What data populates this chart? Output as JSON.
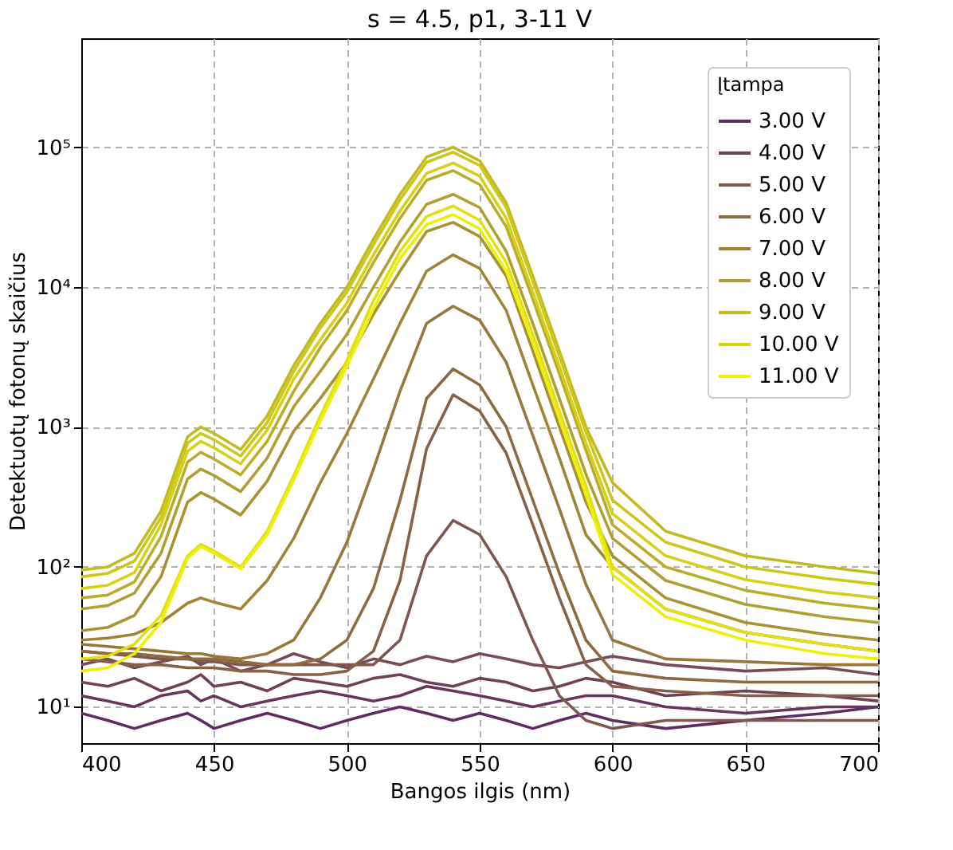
{
  "chart_data": {
    "type": "line",
    "title": "s = 4.5, p1, 3-11 V",
    "xlabel": "Bangos ilgis (nm)",
    "ylabel": "Detektuotų fotonų skaičius",
    "legend_title": "Įtampa",
    "x": [
      400,
      410,
      420,
      430,
      440,
      445,
      450,
      460,
      470,
      480,
      490,
      500,
      510,
      520,
      530,
      540,
      550,
      560,
      570,
      580,
      590,
      600,
      620,
      650,
      680,
      700
    ],
    "xlim": [
      400,
      700
    ],
    "xticks": [
      400,
      450,
      500,
      550,
      600,
      650,
      700
    ],
    "ylim": [
      5.5,
      600000
    ],
    "yticks": [
      {
        "value": 10,
        "label": "10¹"
      },
      {
        "value": 100,
        "label": "10²"
      },
      {
        "value": 1000,
        "label": "10³"
      },
      {
        "value": 10000,
        "label": "10⁴"
      },
      {
        "value": 100000,
        "label": "10⁵"
      }
    ],
    "log": "y",
    "grid": true,
    "legend": "top right",
    "marker": "none",
    "line_style": "solid",
    "series": [
      {
        "name": "3.00 V",
        "color": "#622a62",
        "values": [
          9,
          8,
          7,
          8,
          9,
          8,
          7,
          8,
          9,
          8,
          7,
          8,
          9,
          10,
          9,
          8,
          9,
          8,
          7,
          8,
          9,
          8,
          7,
          8,
          9,
          10
        ]
      },
      {
        "color": "#69355e",
        "values": [
          12,
          11,
          10,
          12,
          13,
          11,
          12,
          10,
          11,
          12,
          13,
          12,
          11,
          12,
          14,
          13,
          12,
          11,
          10,
          11,
          12,
          12,
          10,
          9,
          10,
          10
        ]
      },
      {
        "name": "4.00 V",
        "color": "#70405a",
        "values": [
          15,
          14,
          16,
          13,
          15,
          17,
          14,
          15,
          13,
          16,
          15,
          14,
          16,
          17,
          15,
          14,
          16,
          15,
          13,
          14,
          16,
          15,
          12,
          13,
          12,
          11
        ]
      },
      {
        "color": "#784b55",
        "values": [
          20,
          22,
          19,
          21,
          23,
          20,
          22,
          18,
          20,
          24,
          21,
          19,
          22,
          20,
          23,
          21,
          24,
          22,
          20,
          19,
          21,
          23,
          20,
          18,
          19,
          17
        ]
      },
      {
        "name": "5.00 V",
        "color": "#7f5650",
        "values": [
          25,
          24,
          23,
          22,
          22,
          21,
          21,
          20,
          20,
          20,
          20,
          20,
          20,
          30,
          120,
          215,
          170,
          85,
          30,
          12,
          8,
          7,
          8,
          8,
          8,
          8
        ]
      },
      {
        "color": "#876048",
        "values": [
          22,
          21,
          20,
          20,
          19,
          19,
          19,
          18,
          18,
          17,
          17,
          18,
          25,
          80,
          700,
          1700,
          1300,
          650,
          200,
          60,
          20,
          14,
          13,
          12,
          12,
          12
        ]
      },
      {
        "name": "6.00 V",
        "color": "#8e6a3f",
        "values": [
          25,
          24,
          24,
          23,
          22,
          22,
          22,
          21,
          20,
          20,
          22,
          30,
          70,
          300,
          1600,
          2600,
          2000,
          1000,
          300,
          90,
          30,
          18,
          16,
          15,
          15,
          15
        ]
      },
      {
        "color": "#97773a",
        "values": [
          28,
          27,
          26,
          25,
          24,
          24,
          23,
          22,
          24,
          30,
          60,
          150,
          500,
          1800,
          5500,
          7300,
          5800,
          2900,
          870,
          260,
          75,
          30,
          22,
          21,
          20,
          20
        ]
      },
      {
        "name": "7.00 V",
        "color": "#a08435",
        "values": [
          30,
          31,
          33,
          40,
          55,
          60,
          56,
          50,
          80,
          160,
          400,
          900,
          2200,
          5500,
          13000,
          17000,
          13600,
          6800,
          2000,
          600,
          170,
          100,
          50,
          34,
          28,
          25
        ]
      },
      {
        "color": "#a89234",
        "values": [
          35,
          37,
          45,
          85,
          290,
          340,
          305,
          235,
          410,
          935,
          1600,
          2900,
          6400,
          13000,
          25000,
          29000,
          23000,
          12000,
          3500,
          1000,
          290,
          120,
          60,
          40,
          33,
          30
        ]
      },
      {
        "name": "8.00 V",
        "color": "#b0a034",
        "values": [
          50,
          53,
          65,
          125,
          425,
          500,
          450,
          345,
          600,
          1400,
          2500,
          4600,
          10000,
          21000,
          39000,
          46000,
          37000,
          18000,
          5500,
          1600,
          460,
          160,
          80,
          54,
          44,
          40
        ]
      },
      {
        "color": "#baad2b",
        "values": [
          60,
          63,
          78,
          165,
          560,
          660,
          590,
          455,
          790,
          1800,
          3700,
          6800,
          15000,
          31000,
          58000,
          68000,
          54000,
          27000,
          8200,
          2400,
          680,
          200,
          100,
          68,
          55,
          50
        ]
      },
      {
        "name": "9.00 V",
        "color": "#c3ba22",
        "values": [
          95,
          100,
          125,
          250,
          850,
          1000,
          900,
          690,
          1200,
          2750,
          5500,
          10000,
          22000,
          46000,
          85000,
          100000,
          80000,
          40000,
          12000,
          3500,
          1000,
          400,
          180,
          120,
          100,
          90
        ]
      },
      {
        "color": "#ccc61d",
        "values": [
          85,
          90,
          110,
          225,
          765,
          900,
          810,
          620,
          1080,
          2500,
          5100,
          9200,
          20000,
          42000,
          78000,
          92000,
          74000,
          37000,
          11000,
          3200,
          920,
          300,
          150,
          100,
          83,
          75
        ]
      },
      {
        "name": "10.00 V",
        "color": "#d6d118",
        "values": [
          70,
          74,
          91,
          200,
          670,
          790,
          710,
          545,
          950,
          2200,
          4200,
          7700,
          17000,
          35000,
          65000,
          77000,
          62000,
          31000,
          9200,
          2700,
          770,
          240,
          120,
          81,
          66,
          60
        ]
      },
      {
        "color": "#e2e012",
        "values": [
          22,
          23,
          28,
          45,
          120,
          145,
          130,
          100,
          180,
          450,
          1200,
          3000,
          8000,
          18000,
          32000,
          38000,
          30000,
          15000,
          4600,
          1300,
          380,
          100,
          50,
          34,
          28,
          25
        ]
      },
      {
        "name": "11.00 V",
        "color": "#eef00c",
        "values": [
          18,
          19,
          24,
          40,
          115,
          140,
          125,
          97,
          170,
          420,
          1100,
          2700,
          7000,
          16000,
          28000,
          33000,
          26000,
          13000,
          4000,
          1150,
          330,
          88,
          44,
          30,
          24,
          22
        ]
      }
    ]
  }
}
